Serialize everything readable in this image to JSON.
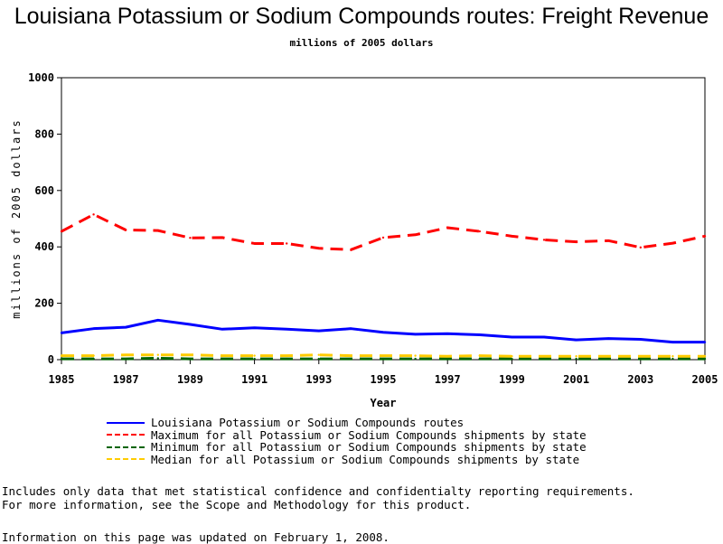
{
  "chart_data": {
    "type": "line",
    "title": "Louisiana Potassium or Sodium Compounds routes: Freight Revenue",
    "subtitle": "millions of 2005 dollars",
    "xlabel": "Year",
    "ylabel": "millions of 2005 dollars",
    "x": [
      1985,
      1986,
      1987,
      1988,
      1989,
      1990,
      1991,
      1992,
      1993,
      1994,
      1995,
      1996,
      1997,
      1998,
      1999,
      2000,
      2001,
      2002,
      2003,
      2004,
      2005
    ],
    "xticks": [
      "1985",
      "1987",
      "1989",
      "1991",
      "1993",
      "1995",
      "1997",
      "1999",
      "2001",
      "2003",
      "2005"
    ],
    "yticks": [
      "0",
      "200",
      "400",
      "600",
      "800",
      "1000"
    ],
    "xlim": [
      1985,
      2005
    ],
    "ylim": [
      0,
      1000
    ],
    "grid": false,
    "series": [
      {
        "name": "Louisiana Potassium or Sodium Compounds routes",
        "color": "#0000ff",
        "dash": "solid",
        "values": [
          95,
          110,
          115,
          140,
          125,
          108,
          113,
          108,
          102,
          110,
          97,
          90,
          92,
          88,
          80,
          80,
          70,
          75,
          72,
          62,
          62
        ]
      },
      {
        "name": "Maximum for all Potassium or Sodium Compounds shipments by state",
        "color": "#ff0000",
        "dash": "dashed",
        "values": [
          455,
          515,
          460,
          458,
          432,
          433,
          412,
          412,
          395,
          390,
          433,
          443,
          468,
          455,
          438,
          425,
          418,
          422,
          398,
          413,
          438
        ]
      },
      {
        "name": "Minimum for all Potassium or Sodium Compounds shipments by state",
        "color": "#006400",
        "dash": "dashed",
        "values": [
          3,
          3,
          3,
          5,
          3,
          3,
          3,
          3,
          3,
          3,
          3,
          3,
          3,
          3,
          3,
          3,
          3,
          3,
          3,
          3,
          3
        ]
      },
      {
        "name": "Median for all Potassium or Sodium Compounds shipments by state",
        "color": "#ffcc00",
        "dash": "dashed",
        "values": [
          14,
          14,
          17,
          17,
          17,
          14,
          14,
          14,
          17,
          14,
          14,
          14,
          12,
          14,
          12,
          12,
          12,
          12,
          12,
          12,
          12
        ]
      }
    ],
    "legend_position": "bottom"
  },
  "notes": [
    "Includes only data that met statistical confidence and confidentialty reporting requirements.",
    "For more information, see the Scope and Methodology for this product."
  ],
  "updated": "Information on this page was updated on February 1, 2008."
}
